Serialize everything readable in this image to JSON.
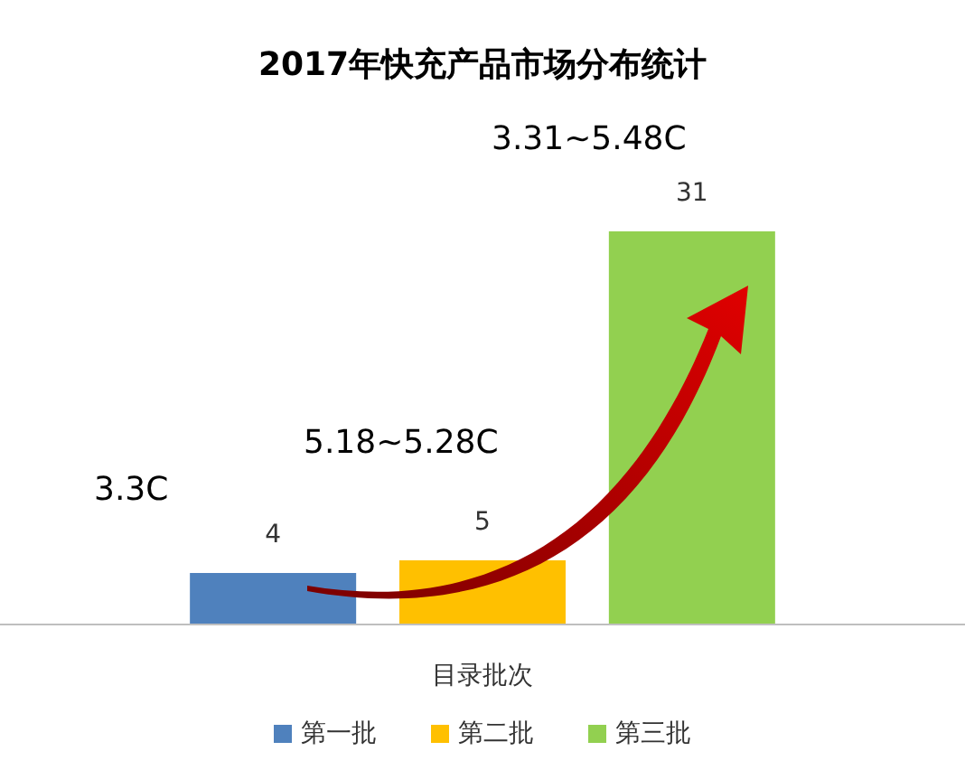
{
  "chart_data": {
    "type": "bar",
    "title": "2017年快充产品市场分布统计",
    "xlabel": "目录批次",
    "categories": [
      null
    ],
    "series": [
      {
        "name": "第一批",
        "color": "#4f81bd",
        "values": [
          4
        ]
      },
      {
        "name": "第二批",
        "color": "#ffc000",
        "values": [
          5
        ]
      },
      {
        "name": "第三批",
        "color": "#92d050",
        "values": [
          31
        ]
      }
    ],
    "data_labels": true,
    "legend": "bottom",
    "annotations": [
      "3.3C",
      "5.18~5.28C",
      "3.31~5.48C"
    ]
  }
}
